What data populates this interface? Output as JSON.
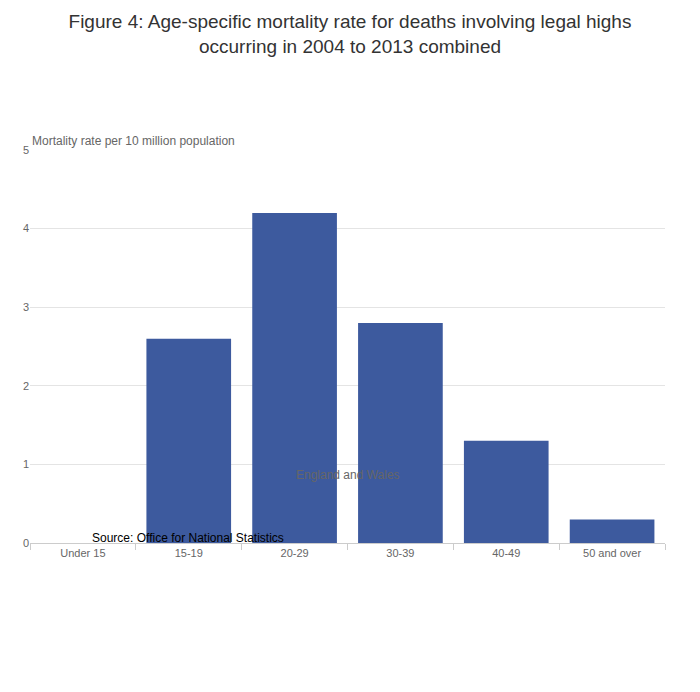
{
  "chart_data": {
    "type": "bar",
    "title": "Figure 4: Age-specific mortality rate for deaths involving legal highs occurring in 2004 to 2013 combined",
    "subtitle": "England and Wales",
    "y_label": "Mortality rate per 10 million population",
    "source": "Source: Office for National Statistics",
    "categories": [
      "Under 15",
      "15-19",
      "20-29",
      "30-39",
      "40-49",
      "50 and over"
    ],
    "values": [
      0,
      2.6,
      4.2,
      2.8,
      1.3,
      0.3
    ],
    "color": "#3d5a9e",
    "ylim": [
      0,
      5
    ],
    "yticks": [
      0,
      1,
      2,
      3,
      4,
      5
    ],
    "grid": true
  }
}
